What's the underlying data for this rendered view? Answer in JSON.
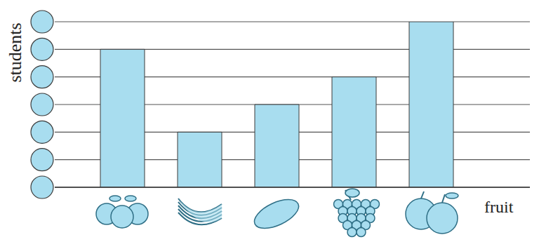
{
  "chart_data": {
    "type": "bar",
    "x_label": "fruit",
    "y_label": "students",
    "categories": [
      null,
      null,
      null,
      null,
      null
    ],
    "values": [
      5,
      2,
      3,
      4,
      6
    ],
    "color": "#a8ddef",
    "ylim": [
      0,
      6
    ],
    "yticks": [
      0,
      1,
      2,
      3,
      4,
      5,
      6
    ],
    "grid": true,
    "tick_labels": false
  }
}
